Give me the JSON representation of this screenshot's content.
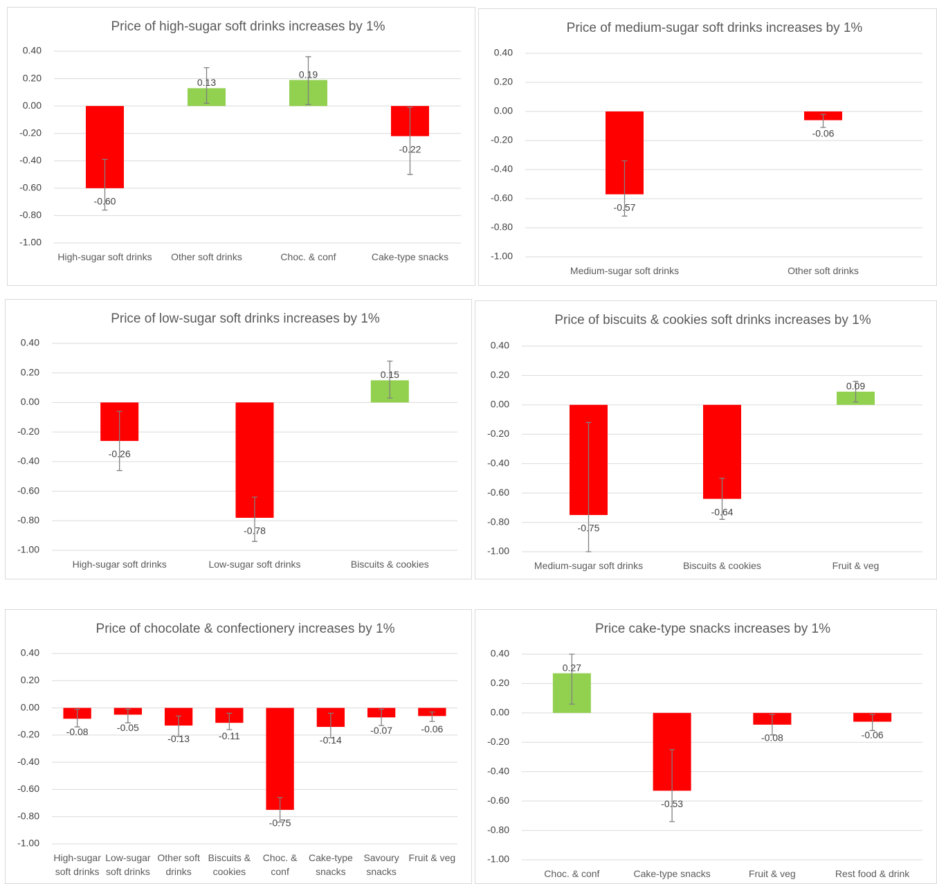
{
  "chart_data": [
    {
      "type": "bar",
      "title": "Price of high-sugar soft drinks increases by 1%",
      "categories": [
        "High-sugar soft drinks",
        "Other soft drinks",
        "Choc. & conf",
        "Cake-type snacks"
      ],
      "values": [
        -0.6,
        0.13,
        0.19,
        -0.22
      ],
      "value_labels": [
        "-0.60",
        "0.13",
        "0.19",
        "-0.22"
      ],
      "error_low": [
        -0.76,
        0.02,
        0.01,
        -0.5
      ],
      "error_high": [
        -0.39,
        0.28,
        0.36,
        -0.01
      ],
      "color_positive": "#92d050",
      "color_negative": "#ff0000",
      "grid": true,
      "ylim": [
        -1.0,
        0.4
      ],
      "yticks": [
        {
          "value": -1.0,
          "label": "-1.00"
        },
        {
          "value": -0.8,
          "label": "-0.80"
        },
        {
          "value": -0.6,
          "label": "-0.60"
        },
        {
          "value": -0.4,
          "label": "-0.40"
        },
        {
          "value": -0.2,
          "label": "-0.20"
        },
        {
          "value": 0,
          "label": "0.00"
        },
        {
          "value": 0.2,
          "label": "0.20"
        },
        {
          "value": 0.4,
          "label": "0.40"
        }
      ]
    },
    {
      "type": "bar",
      "title": "Price of medium-sugar soft drinks increases by 1%",
      "categories": [
        "Medium-sugar soft drinks",
        "Other soft drinks"
      ],
      "values": [
        -0.57,
        -0.06
      ],
      "value_labels": [
        "-0.57",
        "-0.06"
      ],
      "error_low": [
        -0.72,
        -0.11
      ],
      "error_high": [
        -0.34,
        -0.02
      ],
      "color_positive": "#92d050",
      "color_negative": "#ff0000",
      "grid": true,
      "ylim": [
        -1.0,
        0.4
      ],
      "yticks": [
        {
          "value": -1.0,
          "label": "-1.00"
        },
        {
          "value": -0.8,
          "label": "-0.80"
        },
        {
          "value": -0.6,
          "label": "-0.60"
        },
        {
          "value": -0.4,
          "label": "-0.40"
        },
        {
          "value": -0.2,
          "label": "-0.20"
        },
        {
          "value": 0,
          "label": "0.00"
        },
        {
          "value": 0.2,
          "label": "0.20"
        },
        {
          "value": 0.4,
          "label": "0.40"
        }
      ]
    },
    {
      "type": "bar",
      "title": "Price of low-sugar soft drinks increases by 1%",
      "categories": [
        "High-sugar soft drinks",
        "Low-sugar soft drinks",
        "Biscuits & cookies"
      ],
      "values": [
        -0.26,
        -0.78,
        0.15
      ],
      "value_labels": [
        "-0.26",
        "-0.78",
        "0.15"
      ],
      "error_low": [
        -0.46,
        -0.94,
        0.03
      ],
      "error_high": [
        -0.06,
        -0.64,
        0.28
      ],
      "color_positive": "#92d050",
      "color_negative": "#ff0000",
      "grid": true,
      "ylim": [
        -1.0,
        0.4
      ],
      "yticks": [
        {
          "value": -1.0,
          "label": "-1.00"
        },
        {
          "value": -0.8,
          "label": "-0.80"
        },
        {
          "value": -0.6,
          "label": "-0.60"
        },
        {
          "value": -0.4,
          "label": "-0.40"
        },
        {
          "value": -0.2,
          "label": "-0.20"
        },
        {
          "value": 0,
          "label": "0.00"
        },
        {
          "value": 0.2,
          "label": "0.20"
        },
        {
          "value": 0.4,
          "label": "0.40"
        }
      ]
    },
    {
      "type": "bar",
      "title": "Price of biscuits & cookies soft drinks increases by 1%",
      "categories": [
        "Medium-sugar soft drinks",
        "Biscuits & cookies",
        "Fruit & veg"
      ],
      "values": [
        -0.75,
        -0.64,
        0.09
      ],
      "value_labels": [
        "-0.75",
        "-0.64",
        "0.09"
      ],
      "error_low": [
        -1.0,
        -0.78,
        0.02
      ],
      "error_high": [
        -0.12,
        -0.5,
        0.16
      ],
      "color_positive": "#92d050",
      "color_negative": "#ff0000",
      "grid": true,
      "ylim": [
        -1.0,
        0.4
      ],
      "yticks": [
        {
          "value": -1.0,
          "label": "-1.00"
        },
        {
          "value": -0.8,
          "label": "-0.80"
        },
        {
          "value": -0.6,
          "label": "-0.60"
        },
        {
          "value": -0.4,
          "label": "-0.40"
        },
        {
          "value": -0.2,
          "label": "-0.20"
        },
        {
          "value": 0,
          "label": "0.00"
        },
        {
          "value": 0.2,
          "label": "0.20"
        },
        {
          "value": 0.4,
          "label": "0.40"
        }
      ]
    },
    {
      "type": "bar",
      "title": "Price of chocolate & confectionery increases by 1%",
      "categories": [
        "High-sugar soft drinks",
        "Low-sugar soft drinks",
        "Other soft drinks",
        "Biscuits & cookies",
        "Choc. & conf",
        "Cake-type snacks",
        "Savoury snacks",
        "Fruit & veg"
      ],
      "values": [
        -0.08,
        -0.05,
        -0.13,
        -0.11,
        -0.75,
        -0.14,
        -0.07,
        -0.06
      ],
      "value_labels": [
        "-0.08",
        "-0.05",
        "-0.13",
        "-0.11",
        "-0.75",
        "-0.14",
        "-0.07",
        "-0.06"
      ],
      "error_low": [
        -0.14,
        -0.11,
        -0.21,
        -0.16,
        -0.84,
        -0.22,
        -0.13,
        -0.1
      ],
      "error_high": [
        -0.01,
        -0.01,
        -0.06,
        -0.04,
        -0.66,
        -0.04,
        -0.01,
        -0.03
      ],
      "color_positive": "#92d050",
      "color_negative": "#ff0000",
      "grid": true,
      "ylim": [
        -1.0,
        0.4
      ],
      "yticks": [
        {
          "value": -1.0,
          "label": "-1.00"
        },
        {
          "value": -0.8,
          "label": "-0.80"
        },
        {
          "value": -0.6,
          "label": "-0.60"
        },
        {
          "value": -0.4,
          "label": "-0.40"
        },
        {
          "value": -0.2,
          "label": "-0.20"
        },
        {
          "value": 0,
          "label": "0.00"
        },
        {
          "value": 0.2,
          "label": "0.20"
        },
        {
          "value": 0.4,
          "label": "0.40"
        }
      ]
    },
    {
      "type": "bar",
      "title": "Price cake-type snacks increases by 1%",
      "categories": [
        "Choc. & conf",
        "Cake-type snacks",
        "Fruit & veg",
        "Rest food & drink"
      ],
      "values": [
        0.27,
        -0.53,
        -0.08,
        -0.06
      ],
      "value_labels": [
        "0.27",
        "-0.53",
        "-0.08",
        "-0.06"
      ],
      "error_low": [
        0.06,
        -0.74,
        -0.15,
        -0.12
      ],
      "error_high": [
        0.4,
        -0.25,
        -0.01,
        -0.01
      ],
      "color_positive": "#92d050",
      "color_negative": "#ff0000",
      "grid": true,
      "ylim": [
        -1.0,
        0.4
      ],
      "yticks": [
        {
          "value": -1.0,
          "label": "-1.00"
        },
        {
          "value": -0.8,
          "label": "-0.80"
        },
        {
          "value": -0.6,
          "label": "-0.60"
        },
        {
          "value": -0.4,
          "label": "-0.40"
        },
        {
          "value": -0.2,
          "label": "-0.20"
        },
        {
          "value": 0,
          "label": "0.00"
        },
        {
          "value": 0.2,
          "label": "0.20"
        },
        {
          "value": 0.4,
          "label": "0.40"
        }
      ]
    }
  ]
}
